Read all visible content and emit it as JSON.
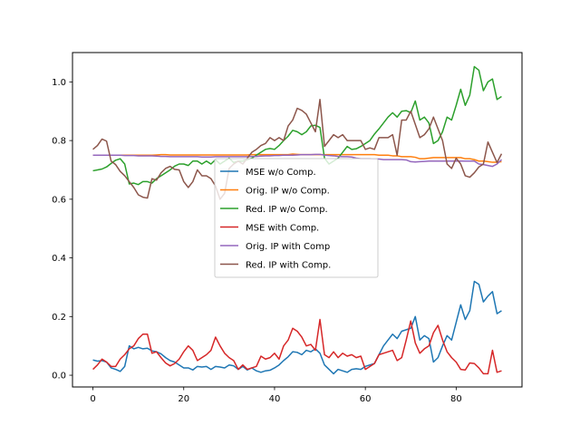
{
  "chart_data": {
    "type": "line",
    "title": "",
    "xlabel": "",
    "ylabel": "",
    "xlim": [
      -4.5,
      94.5
    ],
    "ylim": [
      -0.04,
      1.1
    ],
    "xticks": [
      0,
      20,
      40,
      60,
      80
    ],
    "yticks": [
      0.0,
      0.2,
      0.4,
      0.6,
      0.8,
      1.0
    ],
    "xtick_labels": [
      "0",
      "20",
      "40",
      "60",
      "80"
    ],
    "ytick_labels": [
      "0.0",
      "0.2",
      "0.4",
      "0.6",
      "0.8",
      "1.0"
    ],
    "grid": false,
    "legend_position": "center",
    "x": [
      0,
      1,
      2,
      3,
      4,
      5,
      6,
      7,
      8,
      9,
      10,
      11,
      12,
      13,
      14,
      15,
      16,
      17,
      18,
      19,
      20,
      21,
      22,
      23,
      24,
      25,
      26,
      27,
      28,
      29,
      30,
      31,
      32,
      33,
      34,
      35,
      36,
      37,
      38,
      39,
      40,
      41,
      42,
      43,
      44,
      45,
      46,
      47,
      48,
      49,
      50,
      51,
      52,
      53,
      54,
      55,
      56,
      57,
      58,
      59,
      60,
      61,
      62,
      63,
      64,
      65,
      66,
      67,
      68,
      69,
      70,
      71,
      72,
      73,
      74,
      75,
      76,
      77,
      78,
      79,
      80,
      81,
      82,
      83,
      84,
      85,
      86,
      87,
      88,
      89,
      90
    ],
    "series": [
      {
        "name": "MSE w/o Comp.",
        "color": "#1f77b4",
        "values": [
          0.052,
          0.048,
          0.05,
          0.045,
          0.025,
          0.02,
          0.013,
          0.03,
          0.1,
          0.09,
          0.095,
          0.09,
          0.092,
          0.083,
          0.08,
          0.073,
          0.06,
          0.05,
          0.045,
          0.035,
          0.025,
          0.025,
          0.018,
          0.03,
          0.028,
          0.03,
          0.02,
          0.03,
          0.028,
          0.025,
          0.035,
          0.032,
          0.02,
          0.03,
          0.018,
          0.025,
          0.015,
          0.01,
          0.015,
          0.017,
          0.025,
          0.035,
          0.05,
          0.063,
          0.08,
          0.078,
          0.07,
          0.085,
          0.08,
          0.09,
          0.075,
          0.035,
          0.02,
          0.005,
          0.02,
          0.015,
          0.01,
          0.02,
          0.022,
          0.02,
          0.03,
          0.035,
          0.04,
          0.07,
          0.1,
          0.12,
          0.14,
          0.125,
          0.15,
          0.155,
          0.16,
          0.2,
          0.12,
          0.135,
          0.125,
          0.045,
          0.06,
          0.1,
          0.135,
          0.12,
          0.18,
          0.24,
          0.19,
          0.22,
          0.32,
          0.31,
          0.25,
          0.27,
          0.285,
          0.21,
          0.22
        ]
      },
      {
        "name": "Orig. IP w/o Comp.",
        "color": "#ff7f0e",
        "values": [
          0.75,
          0.75,
          0.75,
          0.75,
          0.75,
          0.75,
          0.75,
          0.75,
          0.75,
          0.75,
          0.75,
          0.75,
          0.75,
          0.75,
          0.751,
          0.752,
          0.752,
          0.751,
          0.751,
          0.751,
          0.751,
          0.751,
          0.751,
          0.751,
          0.751,
          0.751,
          0.751,
          0.751,
          0.751,
          0.751,
          0.751,
          0.751,
          0.751,
          0.751,
          0.751,
          0.752,
          0.752,
          0.752,
          0.752,
          0.752,
          0.752,
          0.752,
          0.752,
          0.752,
          0.754,
          0.753,
          0.752,
          0.752,
          0.752,
          0.752,
          0.752,
          0.752,
          0.752,
          0.752,
          0.752,
          0.752,
          0.752,
          0.752,
          0.752,
          0.752,
          0.752,
          0.752,
          0.752,
          0.75,
          0.75,
          0.75,
          0.748,
          0.748,
          0.745,
          0.745,
          0.745,
          0.743,
          0.738,
          0.738,
          0.74,
          0.742,
          0.742,
          0.742,
          0.742,
          0.742,
          0.742,
          0.742,
          0.738,
          0.738,
          0.735,
          0.73,
          0.73,
          0.728,
          0.726,
          0.726,
          0.728
        ]
      },
      {
        "name": "Red. IP w/o Comp.",
        "color": "#2ca02c",
        "values": [
          0.697,
          0.7,
          0.703,
          0.71,
          0.722,
          0.733,
          0.738,
          0.72,
          0.652,
          0.655,
          0.65,
          0.66,
          0.66,
          0.655,
          0.67,
          0.68,
          0.69,
          0.7,
          0.713,
          0.72,
          0.72,
          0.715,
          0.73,
          0.73,
          0.72,
          0.73,
          0.72,
          0.735,
          0.72,
          0.73,
          0.74,
          0.725,
          0.73,
          0.73,
          0.735,
          0.74,
          0.75,
          0.76,
          0.77,
          0.773,
          0.77,
          0.783,
          0.8,
          0.815,
          0.835,
          0.83,
          0.82,
          0.83,
          0.85,
          0.852,
          0.845,
          0.74,
          0.72,
          0.73,
          0.74,
          0.76,
          0.78,
          0.77,
          0.772,
          0.78,
          0.79,
          0.8,
          0.822,
          0.84,
          0.86,
          0.88,
          0.895,
          0.88,
          0.9,
          0.902,
          0.895,
          0.935,
          0.87,
          0.88,
          0.86,
          0.79,
          0.8,
          0.83,
          0.88,
          0.87,
          0.92,
          0.975,
          0.92,
          0.955,
          1.052,
          1.04,
          0.97,
          1.0,
          1.01,
          0.94,
          0.95
        ]
      },
      {
        "name": "MSE with Comp.",
        "color": "#d62728",
        "values": [
          0.02,
          0.035,
          0.055,
          0.045,
          0.03,
          0.03,
          0.055,
          0.07,
          0.09,
          0.1,
          0.125,
          0.14,
          0.14,
          0.075,
          0.08,
          0.06,
          0.042,
          0.032,
          0.04,
          0.055,
          0.08,
          0.1,
          0.085,
          0.05,
          0.06,
          0.07,
          0.085,
          0.13,
          0.1,
          0.075,
          0.06,
          0.05,
          0.02,
          0.035,
          0.02,
          0.025,
          0.03,
          0.065,
          0.055,
          0.06,
          0.075,
          0.055,
          0.1,
          0.12,
          0.16,
          0.15,
          0.13,
          0.1,
          0.105,
          0.085,
          0.19,
          0.07,
          0.06,
          0.08,
          0.06,
          0.075,
          0.065,
          0.07,
          0.06,
          0.065,
          0.02,
          0.03,
          0.04,
          0.07,
          0.075,
          0.08,
          0.085,
          0.05,
          0.06,
          0.12,
          0.185,
          0.11,
          0.075,
          0.09,
          0.1,
          0.145,
          0.17,
          0.12,
          0.08,
          0.06,
          0.045,
          0.02,
          0.018,
          0.042,
          0.04,
          0.025,
          0.005,
          0.005,
          0.085,
          0.01,
          0.015
        ]
      },
      {
        "name": "Orig. IP with Comp",
        "color": "#9467bd",
        "values": [
          0.75,
          0.75,
          0.75,
          0.75,
          0.75,
          0.75,
          0.75,
          0.749,
          0.749,
          0.749,
          0.748,
          0.748,
          0.748,
          0.748,
          0.747,
          0.746,
          0.746,
          0.745,
          0.745,
          0.745,
          0.745,
          0.745,
          0.745,
          0.745,
          0.744,
          0.744,
          0.744,
          0.745,
          0.745,
          0.745,
          0.745,
          0.745,
          0.745,
          0.745,
          0.745,
          0.746,
          0.746,
          0.747,
          0.748,
          0.748,
          0.749,
          0.749,
          0.75,
          0.75,
          0.75,
          0.751,
          0.752,
          0.752,
          0.752,
          0.753,
          0.753,
          0.75,
          0.749,
          0.748,
          0.746,
          0.745,
          0.745,
          0.744,
          0.74,
          0.738,
          0.738,
          0.738,
          0.737,
          0.737,
          0.735,
          0.735,
          0.735,
          0.735,
          0.735,
          0.734,
          0.728,
          0.727,
          0.728,
          0.729,
          0.73,
          0.73,
          0.73,
          0.73,
          0.73,
          0.73,
          0.73,
          0.73,
          0.73,
          0.73,
          0.73,
          0.72,
          0.718,
          0.715,
          0.712,
          0.72,
          0.735
        ]
      },
      {
        "name": "Red. IP with Comp.",
        "color": "#8c564b",
        "values": [
          0.77,
          0.783,
          0.805,
          0.798,
          0.73,
          0.718,
          0.695,
          0.68,
          0.66,
          0.64,
          0.615,
          0.607,
          0.604,
          0.67,
          0.665,
          0.69,
          0.705,
          0.712,
          0.702,
          0.7,
          0.66,
          0.64,
          0.66,
          0.7,
          0.68,
          0.68,
          0.67,
          0.645,
          0.6,
          0.62,
          0.705,
          0.72,
          0.73,
          0.72,
          0.74,
          0.76,
          0.77,
          0.783,
          0.79,
          0.81,
          0.8,
          0.81,
          0.8,
          0.85,
          0.87,
          0.91,
          0.903,
          0.89,
          0.86,
          0.83,
          0.94,
          0.78,
          0.8,
          0.82,
          0.81,
          0.82,
          0.8,
          0.8,
          0.8,
          0.8,
          0.77,
          0.775,
          0.77,
          0.81,
          0.81,
          0.81,
          0.82,
          0.75,
          0.87,
          0.87,
          0.9,
          0.855,
          0.81,
          0.82,
          0.84,
          0.88,
          0.84,
          0.8,
          0.72,
          0.705,
          0.74,
          0.72,
          0.68,
          0.675,
          0.69,
          0.71,
          0.72,
          0.795,
          0.76,
          0.725,
          0.755
        ]
      }
    ]
  }
}
